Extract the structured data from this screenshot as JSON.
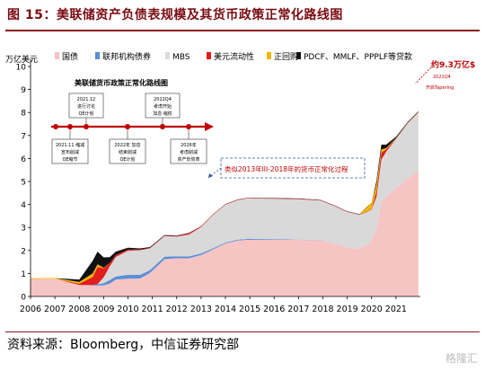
{
  "figure_title": "图 15：美联储资产负债表规模及其货币政策正常化路线图",
  "source": "资料来源：Bloomberg，中信证券研究部",
  "watermark": "格隆汇",
  "colors": {
    "treasuries": "#f7c4c4",
    "agency": "#5b8fd6",
    "mbs": "#d9d9d9",
    "usd_liquidity": "#e11d1d",
    "repo": "#f2b600",
    "facilities": "#111111",
    "accent": "#c00000",
    "callout_blue": "#2f5aa8"
  },
  "chart_data": {
    "type": "area",
    "stacked": true,
    "y_unit": "万亿美元",
    "ylim": [
      0,
      10
    ],
    "yticks": [
      "0",
      "1",
      "2",
      "3",
      "4",
      "5",
      "6",
      "7",
      "8",
      "9",
      "10"
    ],
    "xlim": [
      2006,
      2022
    ],
    "xticks": [
      "2006",
      "2007",
      "2008",
      "2009",
      "2010",
      "2011",
      "2012",
      "2013",
      "2014",
      "2015",
      "2016",
      "2017",
      "2018",
      "2019",
      "2020",
      "2021"
    ],
    "legend": [
      {
        "key": "treasuries",
        "label": "国债"
      },
      {
        "key": "agency",
        "label": "联邦机构债券"
      },
      {
        "key": "mbs",
        "label": "MBS"
      },
      {
        "key": "usd_liquidity",
        "label": "美元流动性"
      },
      {
        "key": "repo",
        "label": "正回购"
      },
      {
        "key": "facilities",
        "label": "PDCF、MMLF、PPPLF等贷款"
      }
    ],
    "legend_position": "top",
    "x": [
      2006.0,
      2007.0,
      2008.0,
      2008.55,
      2008.75,
      2009.0,
      2009.25,
      2009.5,
      2010.0,
      2010.5,
      2010.9,
      2011.5,
      2012.0,
      2012.5,
      2013.0,
      2013.5,
      2014.0,
      2014.5,
      2014.9,
      2016.0,
      2017.0,
      2017.9,
      2018.5,
      2019.0,
      2019.5,
      2019.8,
      2020.0,
      2020.2,
      2020.4,
      2020.6,
      2021.0,
      2021.5,
      2021.92
    ],
    "series": [
      {
        "key": "treasuries",
        "values": [
          0.76,
          0.77,
          0.5,
          0.48,
          0.48,
          0.48,
          0.56,
          0.73,
          0.77,
          0.78,
          1.02,
          1.62,
          1.66,
          1.66,
          1.8,
          2.05,
          2.3,
          2.43,
          2.46,
          2.46,
          2.46,
          2.44,
          2.3,
          2.12,
          2.08,
          2.25,
          2.42,
          2.95,
          4.1,
          4.35,
          4.7,
          5.15,
          5.45
        ]
      },
      {
        "key": "agency",
        "values": [
          0,
          0,
          0,
          0.02,
          0.05,
          0.1,
          0.15,
          0.14,
          0.17,
          0.16,
          0.12,
          0.11,
          0.09,
          0.08,
          0.07,
          0.05,
          0.04,
          0.04,
          0.04,
          0.03,
          0.01,
          0.01,
          0.0,
          0.0,
          0.0,
          0.0,
          0.0,
          0.0,
          0.0,
          0.0,
          0.0,
          0.0,
          0.0
        ]
      },
      {
        "key": "mbs",
        "values": [
          0,
          0,
          0,
          0,
          0,
          0.25,
          0.6,
          0.85,
          1.05,
          1.07,
          0.95,
          0.9,
          0.85,
          0.95,
          1.15,
          1.45,
          1.65,
          1.72,
          1.76,
          1.76,
          1.76,
          1.72,
          1.62,
          1.55,
          1.47,
          1.41,
          1.37,
          1.39,
          1.85,
          1.95,
          2.15,
          2.4,
          2.55
        ]
      },
      {
        "key": "usd_liquidity",
        "values": [
          0,
          0,
          0.05,
          0.35,
          0.75,
          0.4,
          0.15,
          0.08,
          0.05,
          0.03,
          0.03,
          0.02,
          0.03,
          0.06,
          0.03,
          0.02,
          0.02,
          0.02,
          0.02,
          0.02,
          0.02,
          0.02,
          0.02,
          0.02,
          0.02,
          0.02,
          0.03,
          0.25,
          0.3,
          0.1,
          0.03,
          0.02,
          0.02
        ]
      },
      {
        "key": "repo",
        "values": [
          0.03,
          0.03,
          0.08,
          0.15,
          0.12,
          0.02,
          0,
          0,
          0,
          0,
          0,
          0,
          0,
          0,
          0,
          0,
          0,
          0,
          0,
          0,
          0,
          0,
          0,
          0,
          0,
          0.2,
          0.25,
          0.3,
          0.15,
          0.05,
          0.01,
          0.01,
          0.01
        ]
      },
      {
        "key": "facilities",
        "values": [
          0,
          0,
          0.1,
          0.55,
          0.55,
          0.45,
          0.25,
          0.15,
          0.08,
          0.05,
          0.03,
          0.02,
          0.02,
          0.01,
          0.01,
          0.01,
          0.01,
          0.01,
          0.01,
          0.01,
          0.01,
          0.01,
          0.01,
          0.01,
          0.01,
          0.01,
          0.01,
          0.15,
          0.2,
          0.15,
          0.05,
          0.03,
          0.03
        ]
      }
    ]
  },
  "annotations": {
    "peak_label": "约9.3万亿$",
    "peak_sub1": "2021Q4",
    "peak_sub2": "开启Tapering",
    "callout": "类似2013年III-2018年的货币正常化过程",
    "roadmap_title": "美联储货币政策正常化路线图",
    "roadmap_top": [
      {
        "line1": "2021.12",
        "line2": "进行讨论",
        "line3": "QE计划"
      },
      {
        "line1": "2022Q4",
        "line2": "考虑开始",
        "line3": "加息 缩债"
      }
    ],
    "roadmap_bottom": [
      {
        "line1": "2021.11 缩减",
        "line2": "宣布削减",
        "line3": "QE缩节"
      },
      {
        "line1": "2022年 加息",
        "line2": "结束削减",
        "line3": "QE计划"
      },
      {
        "line1": "2026年",
        "line2": "考虑削减",
        "line3": "资产负债表"
      }
    ]
  }
}
